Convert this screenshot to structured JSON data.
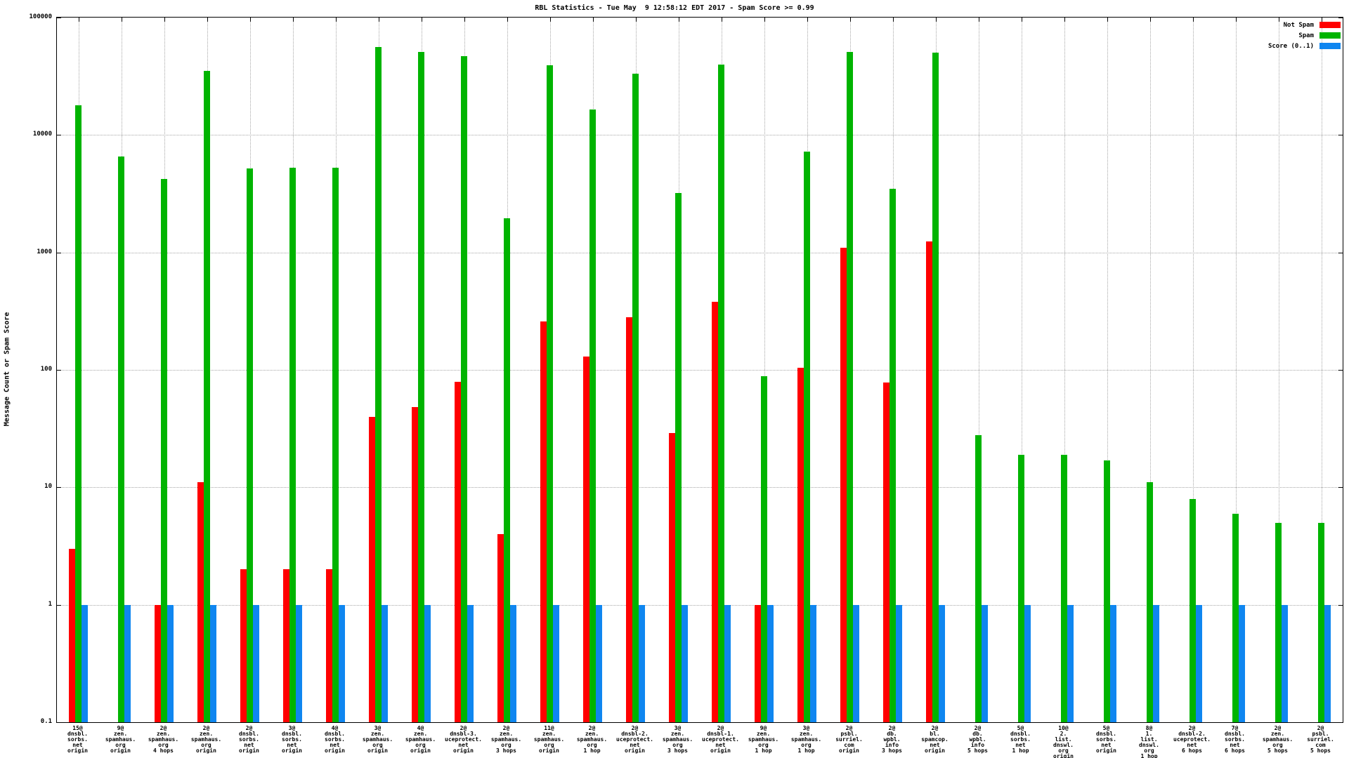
{
  "chart_data": {
    "type": "bar",
    "title": "RBL Statistics - Tue May  9 12:58:12 EDT 2017 - Spam Score >= 0.99",
    "ylabel": "Message Count or Spam Score",
    "xlabel": "",
    "yscale": "log",
    "ylim": [
      0.1,
      100000
    ],
    "ytick_labels": [
      "100000",
      "10000",
      "1000",
      "100",
      "10",
      "1",
      "0.1"
    ],
    "grid": true,
    "legend_position": "top-right",
    "legend": [
      {
        "name": "Not Spam",
        "color": "#ff0000"
      },
      {
        "name": "Spam",
        "color": "#00b400"
      },
      {
        "name": "Score (0..1)",
        "color": "#0f86f0"
      }
    ],
    "categories": [
      [
        "15@",
        "dnsbl.",
        "sorbs.",
        "net",
        "origin"
      ],
      [
        "9@",
        "zen.",
        "spamhaus.",
        "org",
        "origin"
      ],
      [
        "2@",
        "zen.",
        "spamhaus.",
        "org",
        "4 hops"
      ],
      [
        "2@",
        "zen.",
        "spamhaus.",
        "org",
        "origin"
      ],
      [
        "2@",
        "dnsbl.",
        "sorbs.",
        "net",
        "origin"
      ],
      [
        "3@",
        "dnsbl.",
        "sorbs.",
        "net",
        "origin"
      ],
      [
        "4@",
        "dnsbl.",
        "sorbs.",
        "net",
        "origin"
      ],
      [
        "3@",
        "zen.",
        "spamhaus.",
        "org",
        "origin"
      ],
      [
        "4@",
        "zen.",
        "spamhaus.",
        "org",
        "origin"
      ],
      [
        "2@",
        "dnsbl-3.",
        "uceprotect.",
        "net",
        "origin"
      ],
      [
        "2@",
        "zen.",
        "spamhaus.",
        "org",
        "3 hops"
      ],
      [
        "11@",
        "zen.",
        "spamhaus.",
        "org",
        "origin"
      ],
      [
        "2@",
        "zen.",
        "spamhaus.",
        "org",
        "1 hop"
      ],
      [
        "2@",
        "dnsbl-2.",
        "uceprotect.",
        "net",
        "origin"
      ],
      [
        "3@",
        "zen.",
        "spamhaus.",
        "org",
        "3 hops"
      ],
      [
        "2@",
        "dnsbl-1.",
        "uceprotect.",
        "net",
        "origin"
      ],
      [
        "9@",
        "zen.",
        "spamhaus.",
        "org",
        "1 hop"
      ],
      [
        "3@",
        "zen.",
        "spamhaus.",
        "org",
        "1 hop"
      ],
      [
        "2@",
        "psbl.",
        "surriel.",
        "com",
        "origin"
      ],
      [
        "2@",
        "db.",
        "wpbl.",
        "info",
        "3 hops"
      ],
      [
        "2@",
        "bl.",
        "spamcop.",
        "net",
        "origin"
      ],
      [
        "2@",
        "db.",
        "wpbl.",
        "info",
        "5 hops"
      ],
      [
        "5@",
        "dnsbl.",
        "sorbs.",
        "net",
        "1 hop"
      ],
      [
        "10@",
        "2.",
        "list.",
        "dnswl.",
        "org",
        "origin"
      ],
      [
        "5@",
        "dnsbl.",
        "sorbs.",
        "net",
        "origin"
      ],
      [
        "8@",
        "1.",
        "list.",
        "dnswl.",
        "org",
        "1 hop"
      ],
      [
        "2@",
        "dnsbl-2.",
        "uceprotect.",
        "net",
        "6 hops"
      ],
      [
        "7@",
        "dnsbl.",
        "sorbs.",
        "net",
        "6 hops"
      ],
      [
        "2@",
        "zen.",
        "spamhaus.",
        "org",
        "5 hops"
      ],
      [
        "2@",
        "psbl.",
        "surriel.",
        "com",
        "5 hops"
      ]
    ],
    "series": [
      {
        "name": "Not Spam",
        "color": "#ff0000",
        "values": [
          3,
          0,
          1,
          11,
          2,
          2,
          2,
          40,
          48,
          79,
          4,
          260,
          130,
          280,
          29,
          380,
          1,
          105,
          1100,
          78,
          1250,
          0,
          0,
          0,
          0,
          0,
          0,
          0,
          0,
          0
        ]
      },
      {
        "name": "Spam",
        "color": "#00b400",
        "values": [
          18000,
          6600,
          4200,
          35000,
          5200,
          5300,
          5300,
          56000,
          51000,
          47000,
          1950,
          39000,
          16500,
          33500,
          3200,
          40000,
          88,
          7200,
          51000,
          3500,
          50000,
          28,
          19,
          19,
          17,
          11,
          8,
          6,
          5,
          5
        ]
      },
      {
        "name": "Score (0..1)",
        "color": "#0f86f0",
        "values": [
          1,
          1,
          1,
          1,
          1,
          1,
          1,
          1,
          1,
          1,
          1,
          1,
          1,
          1,
          1,
          1,
          1,
          1,
          1,
          1,
          1,
          1,
          1,
          1,
          1,
          1,
          1,
          1,
          1,
          1
        ]
      }
    ]
  }
}
